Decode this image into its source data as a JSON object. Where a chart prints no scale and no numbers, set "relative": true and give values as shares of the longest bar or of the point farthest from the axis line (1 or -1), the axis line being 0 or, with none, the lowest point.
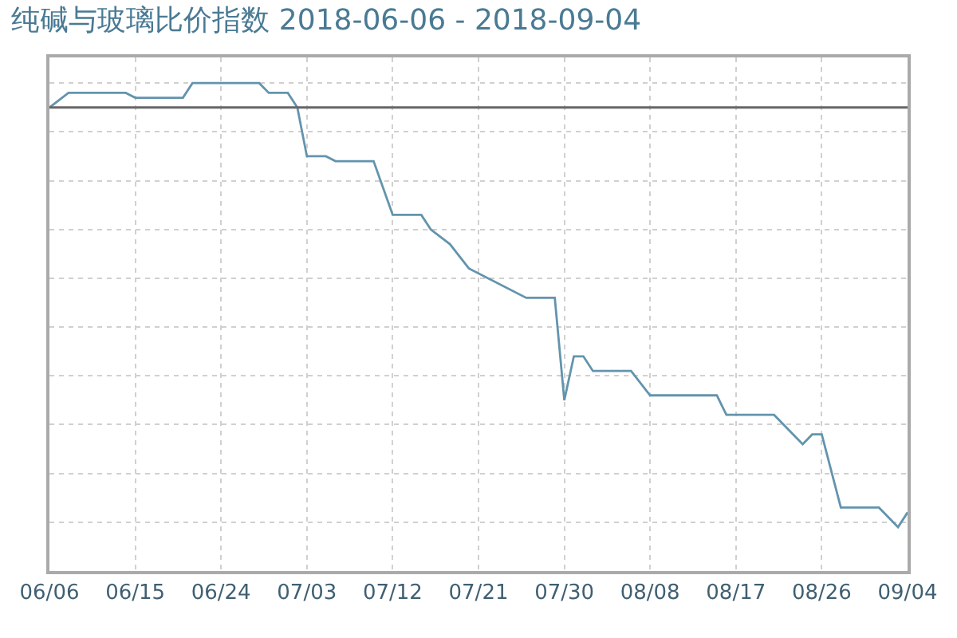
{
  "chart_data": {
    "type": "line",
    "title": "纯碱与玻璃比价指数 2018-06-06 - 2018-09-04",
    "relative": true,
    "x": [
      "2018-06-06",
      "2018-06-08",
      "2018-06-14",
      "2018-06-15",
      "2018-06-20",
      "2018-06-21",
      "2018-06-28",
      "2018-06-29",
      "2018-07-01",
      "2018-07-02",
      "2018-07-03",
      "2018-07-05",
      "2018-07-06",
      "2018-07-10",
      "2018-07-12",
      "2018-07-15",
      "2018-07-16",
      "2018-07-18",
      "2018-07-20",
      "2018-07-26",
      "2018-07-29",
      "2018-07-30",
      "2018-07-31",
      "2018-08-01",
      "2018-08-02",
      "2018-08-06",
      "2018-08-08",
      "2018-08-15",
      "2018-08-16",
      "2018-08-21",
      "2018-08-24",
      "2018-08-25",
      "2018-08-26",
      "2018-08-28",
      "2018-09-01",
      "2018-09-03",
      "2018-09-04"
    ],
    "series": [
      {
        "color": "#6394ad",
        "values": [
          0.95,
          0.98,
          0.98,
          0.97,
          0.97,
          1.0,
          1.0,
          0.98,
          0.98,
          0.95,
          0.85,
          0.85,
          0.84,
          0.84,
          0.73,
          0.73,
          0.7,
          0.67,
          0.62,
          0.56,
          0.56,
          0.35,
          0.44,
          0.44,
          0.41,
          0.41,
          0.36,
          0.36,
          0.32,
          0.32,
          0.26,
          0.28,
          0.28,
          0.13,
          0.13,
          0.09,
          0.12
        ]
      }
    ],
    "xlim": [
      "2018-06-06",
      "2018-09-04"
    ],
    "xticks": [
      {
        "value": "2018-06-06",
        "label": "06/06"
      },
      {
        "value": "2018-06-15",
        "label": "06/15"
      },
      {
        "value": "2018-06-24",
        "label": "06/24"
      },
      {
        "value": "2018-07-03",
        "label": "07/03"
      },
      {
        "value": "2018-07-12",
        "label": "07/12"
      },
      {
        "value": "2018-07-21",
        "label": "07/21"
      },
      {
        "value": "2018-07-30",
        "label": "07/30"
      },
      {
        "value": "2018-08-08",
        "label": "08/08"
      },
      {
        "value": "2018-08-17",
        "label": "08/17"
      },
      {
        "value": "2018-08-26",
        "label": "08/26"
      },
      {
        "value": "2018-09-04",
        "label": "09/04"
      }
    ],
    "ref_lines": [
      {
        "axis": "y",
        "value": 0.95,
        "color": "#666666"
      }
    ],
    "grid": true,
    "line_style": "solid"
  }
}
